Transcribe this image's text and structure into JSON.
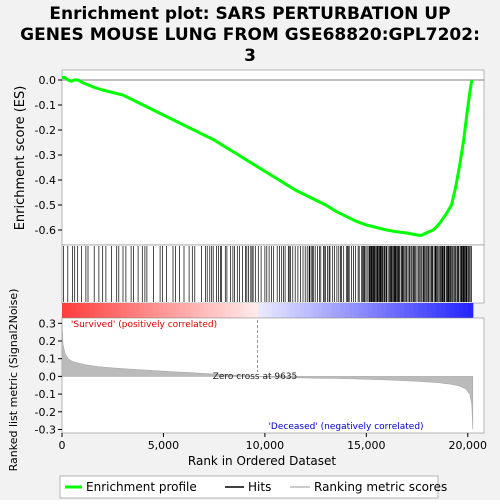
{
  "chart_data": {
    "type": "line",
    "title_lines": [
      "Enrichment plot: SARS PERTURBATION UP",
      "GENES MOUSE LUNG FROM GSE68820:GPL7202:",
      "3"
    ],
    "es_panel": {
      "ylabel": "Enrichment score (ES)",
      "ylim": [
        -0.66,
        0.04
      ],
      "yticks": [
        "0.0",
        "-0.1",
        "-0.2",
        "-0.3",
        "-0.4",
        "-0.5",
        "-0.6"
      ],
      "ytick_values": [
        0.0,
        -0.1,
        -0.2,
        -0.3,
        -0.4,
        -0.5,
        -0.6
      ],
      "series": [
        {
          "name": "Enrichment profile",
          "color": "#00ff00",
          "x": [
            0,
            150,
            300,
            450,
            600,
            800,
            1000,
            1300,
            1600,
            2000,
            2500,
            3000,
            3500,
            4000,
            4500,
            5000,
            5500,
            6000,
            6500,
            7000,
            7500,
            8000,
            8500,
            9000,
            9500,
            10000,
            10500,
            11000,
            11500,
            12000,
            12500,
            13000,
            13500,
            14000,
            14500,
            15000,
            15500,
            16000,
            16500,
            17000,
            17500,
            17700,
            18000,
            18300,
            18600,
            18900,
            19200,
            19400,
            19600,
            19800,
            19950,
            20100,
            20200
          ],
          "y": [
            0.01,
            0.01,
            0.0,
            -0.005,
            0.0,
            0.0,
            -0.01,
            -0.02,
            -0.03,
            -0.04,
            -0.05,
            -0.06,
            -0.08,
            -0.1,
            -0.12,
            -0.14,
            -0.16,
            -0.18,
            -0.2,
            -0.22,
            -0.24,
            -0.265,
            -0.29,
            -0.315,
            -0.34,
            -0.365,
            -0.39,
            -0.415,
            -0.44,
            -0.46,
            -0.48,
            -0.5,
            -0.525,
            -0.545,
            -0.565,
            -0.58,
            -0.59,
            -0.6,
            -0.607,
            -0.612,
            -0.62,
            -0.622,
            -0.61,
            -0.6,
            -0.575,
            -0.54,
            -0.5,
            -0.43,
            -0.34,
            -0.24,
            -0.14,
            -0.05,
            0.0
          ]
        }
      ],
      "hits_label": "Hits"
    },
    "metric_panel": {
      "ylabel": "Ranked list metric (Signal2Noise)",
      "xlabel": "Rank in Ordered Dataset",
      "ylim": [
        -0.32,
        0.33
      ],
      "yticks": [
        "0.3",
        "0.2",
        "0.1",
        "0.0",
        "-0.1",
        "-0.2",
        "-0.3"
      ],
      "ytick_values": [
        0.3,
        0.2,
        0.1,
        0.0,
        -0.1,
        -0.2,
        -0.3
      ],
      "xlim": [
        0,
        20800
      ],
      "xticks": [
        "0",
        "5,000",
        "10,000",
        "15,000",
        "20,000"
      ],
      "xtick_values": [
        0,
        5000,
        10000,
        15000,
        20000
      ],
      "metric_x": [
        0,
        50,
        150,
        300,
        500,
        800,
        1200,
        1800,
        2500,
        3500,
        4500,
        5500,
        6500,
        7500,
        8500,
        9635,
        10500,
        11500,
        12500,
        13500,
        14500,
        15500,
        16500,
        17500,
        18500,
        19200,
        19600,
        19900,
        20100,
        20200,
        20250
      ],
      "metric_y": [
        0.31,
        0.18,
        0.13,
        0.1,
        0.085,
        0.075,
        0.065,
        0.055,
        0.048,
        0.04,
        0.033,
        0.026,
        0.02,
        0.013,
        0.007,
        0.0,
        -0.005,
        -0.008,
        -0.01,
        -0.012,
        -0.015,
        -0.018,
        -0.022,
        -0.028,
        -0.035,
        -0.045,
        -0.055,
        -0.07,
        -0.1,
        -0.16,
        -0.3
      ],
      "zero_cross_label": "Zero cross at 9635",
      "zero_cross_x": 9635,
      "positive_label": "'Survived' (positively correlated)",
      "negative_label": "'Deceased' (negatively correlated)",
      "positive_color": "#ff0000",
      "negative_color": "#0000ff"
    },
    "legend": {
      "entries": [
        "Enrichment profile",
        "Hits",
        "Ranking metric scores"
      ],
      "colors": [
        "#00ff00",
        "#000000",
        "#bbbbbb"
      ]
    }
  }
}
